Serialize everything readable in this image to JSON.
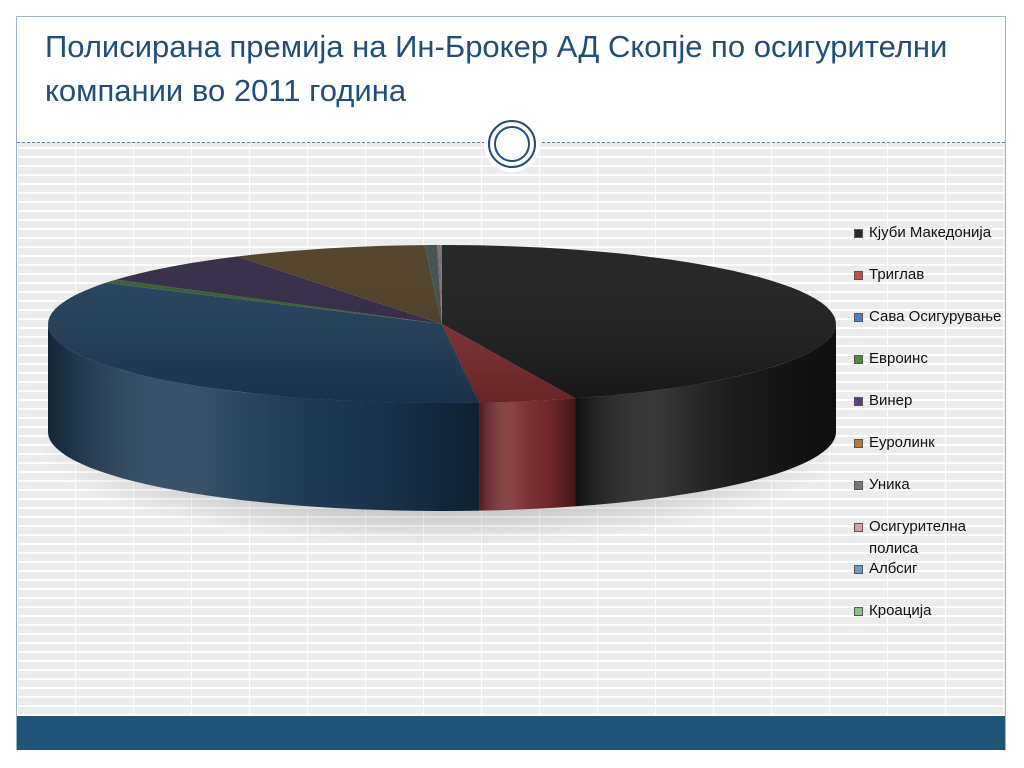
{
  "slide": {
    "title": "Полисирана премија на Ин-Брокер АД Скопје по осигурителни компании во 2011 година"
  },
  "chart_data": {
    "type": "pie",
    "title": "",
    "style": "3d",
    "legend_position": "right",
    "categories": [
      "Кјуби Македонија",
      "Триглав",
      "Сава Осигурување",
      "Евроинс",
      "Винер",
      "Еуролинк",
      "Уника",
      "Осигурителна полиса",
      "Албсиг",
      "Кроација"
    ],
    "values": [
      44.5,
      4.0,
      35.2,
      0.8,
      6.8,
      8.0,
      0.5,
      0.1,
      0.05,
      0.05
    ],
    "colors": [
      "#1a1a1a",
      "#7a2a2e",
      "#1d3a56",
      "#2f5a2e",
      "#2e2440",
      "#4a3a22",
      "#3c4a4a",
      "#8a5a5a",
      "#4a6a84",
      "#5a7a5a"
    ],
    "swatch_colors": [
      "#2a2a2a",
      "#c0504d",
      "#4f81bd",
      "#4f8a3e",
      "#5b3f7a",
      "#b07a3a",
      "#7a7a7a",
      "#d9a0a0",
      "#6c9ac8",
      "#8fbf8a"
    ]
  }
}
